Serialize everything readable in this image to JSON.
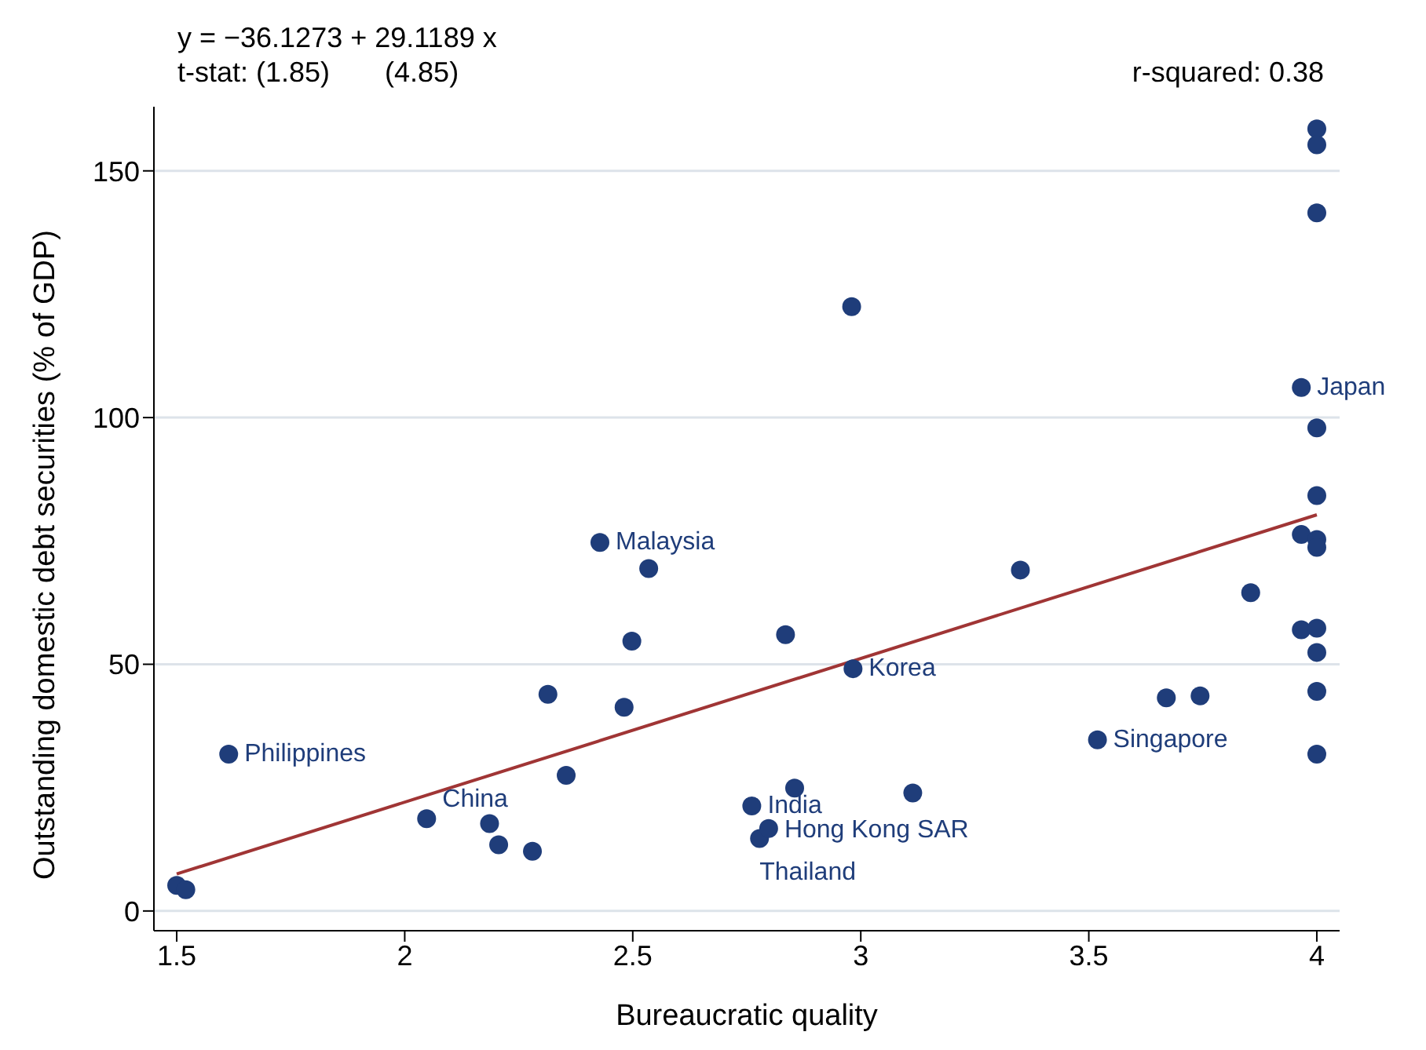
{
  "chart_data": {
    "type": "scatter",
    "xlabel": "Bureaucratic quality",
    "ylabel": "Outstanding domestic debt securities (% of GDP)",
    "xlim": [
      1.45,
      4.05
    ],
    "xticks": [
      1.5,
      2,
      2.5,
      3,
      3.5,
      4
    ],
    "ylim": [
      -4,
      163
    ],
    "yticks": [
      0,
      50,
      100,
      150
    ],
    "grid": "y",
    "marker": "circle",
    "series": [
      {
        "color": "#1f3d7a",
        "x": [
          1.5,
          1.52,
          1.614,
          2.048,
          2.186,
          2.206,
          2.28,
          2.314,
          2.354,
          2.428,
          2.481,
          2.498,
          2.535,
          2.761,
          2.778,
          2.798,
          2.835,
          2.855,
          2.98,
          2.983,
          3.114,
          3.35,
          3.519,
          3.67,
          3.744,
          3.855,
          3.966,
          3.966,
          3.966,
          4,
          4,
          4,
          4,
          4,
          4,
          4,
          4,
          4,
          4,
          4
        ],
        "values": [
          5.2,
          4.3,
          31.8,
          18.7,
          17.7,
          13.4,
          12.1,
          43.9,
          27.5,
          74.7,
          41.3,
          54.7,
          69.4,
          21.3,
          14.7,
          16.7,
          56.0,
          24.9,
          122.5,
          49.1,
          23.9,
          69.1,
          34.7,
          43.2,
          43.6,
          64.5,
          106.1,
          76.3,
          57.0,
          158.5,
          155.3,
          141.5,
          97.9,
          84.2,
          75.3,
          73.7,
          57.3,
          52.4,
          44.5,
          31.8
        ]
      },
      {
        "type": "line",
        "color": "#a03535",
        "x": [
          1.5,
          4
        ],
        "values": [
          7.5,
          80.3
        ],
        "marker": "none",
        "line_style": "solid"
      }
    ],
    "annotations": [
      "y = −36.1273 + 29.1189 x",
      "t-stat: (1.85)       (4.85)",
      "r-squared: 0.38",
      {
        "text": "Philippines",
        "x": 1.614,
        "y": 31.8
      },
      {
        "text": "China",
        "x": 2.048,
        "y": 18.7
      },
      {
        "text": "Malaysia",
        "x": 2.428,
        "y": 74.7
      },
      {
        "text": "India",
        "x": 2.761,
        "y": 21.3
      },
      {
        "text": "Hong Kong SAR",
        "x": 2.798,
        "y": 16.7
      },
      {
        "text": "Thailand",
        "x": 2.778,
        "y": 14.7
      },
      {
        "text": "Korea",
        "x": 2.983,
        "y": 49.1
      },
      {
        "text": "Singapore",
        "x": 3.519,
        "y": 34.7
      },
      {
        "text": "Japan",
        "x": 3.966,
        "y": 106.1
      }
    ]
  }
}
